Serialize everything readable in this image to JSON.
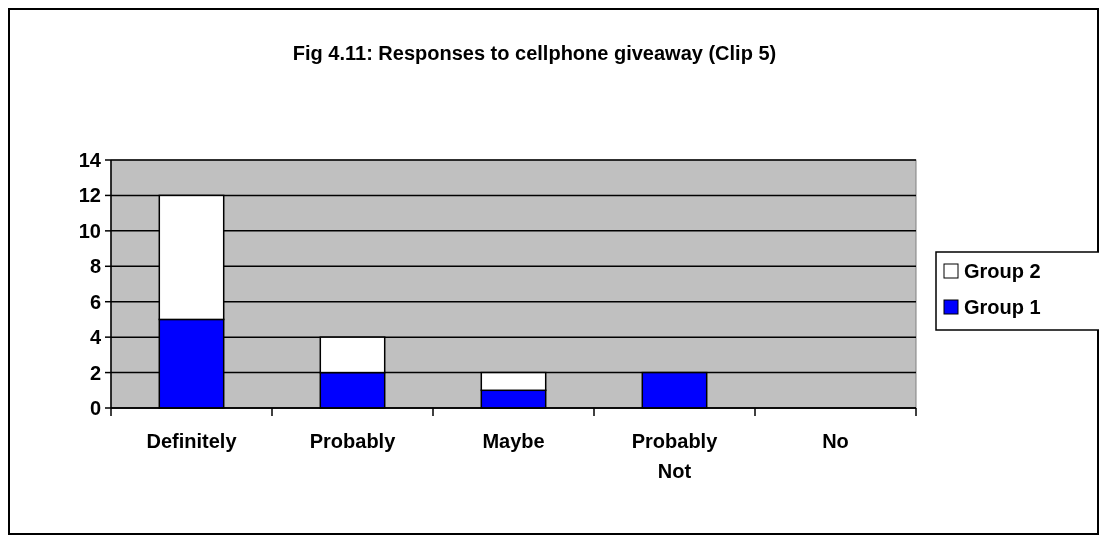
{
  "chart_data": {
    "type": "bar",
    "stacked": true,
    "title": "Fig 4.11: Responses to cellphone giveaway (Clip 5)",
    "categories": [
      "Definitely",
      "Probably",
      "Maybe",
      "Probably Not",
      "No"
    ],
    "series": [
      {
        "name": "Group 1",
        "color": "#0000ff",
        "values": [
          5,
          2,
          1,
          2,
          0
        ]
      },
      {
        "name": "Group 2",
        "color": "#ffffff",
        "values": [
          7,
          2,
          1,
          0,
          0
        ]
      }
    ],
    "ylim": [
      0,
      14
    ],
    "yticks": [
      0,
      2,
      4,
      6,
      8,
      10,
      12,
      14
    ],
    "grid": "y",
    "legend": "right"
  }
}
